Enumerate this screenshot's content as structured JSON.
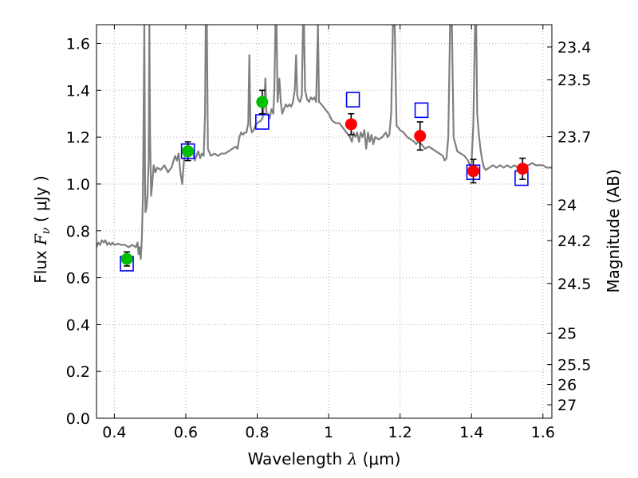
{
  "chart_data": {
    "type": "scatter",
    "xlabel": {
      "text": "Wavelength  ",
      "math": "λ",
      "unit": " (μm)"
    },
    "ylabel": {
      "text": "Flux  ",
      "math": "F",
      "sub": "ν",
      "unit": "  ( μJy )"
    },
    "y2label": "Magnitude (AB)",
    "xlim": [
      0.35,
      1.625
    ],
    "ylim": [
      0.0,
      1.68
    ],
    "grid": true,
    "x_ticks": [
      {
        "v": 0.4,
        "label": "0.4"
      },
      {
        "v": 0.6,
        "label": "0.6"
      },
      {
        "v": 0.8,
        "label": "0.8"
      },
      {
        "v": 1.0,
        "label": "1"
      },
      {
        "v": 1.2,
        "label": "1.2"
      },
      {
        "v": 1.4,
        "label": "1.4"
      },
      {
        "v": 1.6,
        "label": "1.6"
      }
    ],
    "y_ticks": [
      {
        "v": 0.0,
        "label": "0.0"
      },
      {
        "v": 0.2,
        "label": "0.2"
      },
      {
        "v": 0.4,
        "label": "0.4"
      },
      {
        "v": 0.6,
        "label": "0.6"
      },
      {
        "v": 0.8,
        "label": "0.8"
      },
      {
        "v": 1.0,
        "label": "1.0"
      },
      {
        "v": 1.2,
        "label": "1.2"
      },
      {
        "v": 1.4,
        "label": "1.4"
      },
      {
        "v": 1.6,
        "label": "1.6"
      }
    ],
    "mag_ticks": [
      {
        "mag": 23.4,
        "label": "23.4"
      },
      {
        "mag": 23.5,
        "label": "23.5"
      },
      {
        "mag": 23.7,
        "label": "23.7"
      },
      {
        "mag": 24.0,
        "label": "24"
      },
      {
        "mag": 24.2,
        "label": "24.2"
      },
      {
        "mag": 24.5,
        "label": "24.5"
      },
      {
        "mag": 25.0,
        "label": "25"
      },
      {
        "mag": 25.5,
        "label": "25.5"
      },
      {
        "mag": 26.0,
        "label": "26"
      },
      {
        "mag": 27.0,
        "label": "27"
      }
    ],
    "colors": {
      "model": "#7f7f7f",
      "green": "#00c000",
      "red": "#ff0000",
      "box": "#0000ff",
      "grid": "#b0b0b0"
    },
    "series": [
      {
        "kind": "model-spectrum",
        "color": "#7f7f7f",
        "points": [
          [
            0.35,
            0.73
          ],
          [
            0.355,
            0.75
          ],
          [
            0.36,
            0.74
          ],
          [
            0.365,
            0.76
          ],
          [
            0.37,
            0.75
          ],
          [
            0.375,
            0.76
          ],
          [
            0.38,
            0.74
          ],
          [
            0.385,
            0.75
          ],
          [
            0.39,
            0.74
          ],
          [
            0.395,
            0.75
          ],
          [
            0.4,
            0.74
          ],
          [
            0.41,
            0.745
          ],
          [
            0.42,
            0.74
          ],
          [
            0.43,
            0.74
          ],
          [
            0.44,
            0.73
          ],
          [
            0.45,
            0.74
          ],
          [
            0.46,
            0.73
          ],
          [
            0.465,
            0.75
          ],
          [
            0.468,
            0.7
          ],
          [
            0.471,
            0.73
          ],
          [
            0.474,
            0.68
          ],
          [
            0.477,
            0.77
          ],
          [
            0.48,
            0.95
          ],
          [
            0.482,
            1.3
          ],
          [
            0.484,
            1.68
          ],
          [
            0.486,
            1.0
          ],
          [
            0.487,
            0.88
          ],
          [
            0.49,
            0.9
          ],
          [
            0.493,
            0.95
          ],
          [
            0.496,
            1.1
          ],
          [
            0.498,
            1.68
          ],
          [
            0.5,
            1.2
          ],
          [
            0.503,
            0.95
          ],
          [
            0.506,
            1.0
          ],
          [
            0.51,
            1.08
          ],
          [
            0.515,
            1.05
          ],
          [
            0.52,
            1.07
          ],
          [
            0.53,
            1.06
          ],
          [
            0.54,
            1.08
          ],
          [
            0.55,
            1.05
          ],
          [
            0.56,
            1.07
          ],
          [
            0.57,
            1.12
          ],
          [
            0.575,
            1.1
          ],
          [
            0.58,
            1.13
          ],
          [
            0.585,
            1.05
          ],
          [
            0.59,
            1.0
          ],
          [
            0.595,
            1.1
          ],
          [
            0.6,
            1.15
          ],
          [
            0.605,
            1.14
          ],
          [
            0.61,
            1.13
          ],
          [
            0.62,
            1.14
          ],
          [
            0.625,
            1.1
          ],
          [
            0.63,
            1.12
          ],
          [
            0.635,
            1.14
          ],
          [
            0.64,
            1.11
          ],
          [
            0.645,
            1.13
          ],
          [
            0.65,
            1.12
          ],
          [
            0.654,
            1.3
          ],
          [
            0.656,
            1.68
          ],
          [
            0.659,
            1.68
          ],
          [
            0.662,
            1.15
          ],
          [
            0.67,
            1.12
          ],
          [
            0.68,
            1.13
          ],
          [
            0.69,
            1.12
          ],
          [
            0.7,
            1.13
          ],
          [
            0.71,
            1.13
          ],
          [
            0.72,
            1.14
          ],
          [
            0.73,
            1.15
          ],
          [
            0.74,
            1.16
          ],
          [
            0.745,
            1.15
          ],
          [
            0.75,
            1.2
          ],
          [
            0.755,
            1.22
          ],
          [
            0.76,
            1.21
          ],
          [
            0.765,
            1.22
          ],
          [
            0.77,
            1.22
          ],
          [
            0.775,
            1.26
          ],
          [
            0.778,
            1.55
          ],
          [
            0.781,
            1.25
          ],
          [
            0.785,
            1.22
          ],
          [
            0.79,
            1.23
          ],
          [
            0.795,
            1.25
          ],
          [
            0.8,
            1.26
          ],
          [
            0.81,
            1.27
          ],
          [
            0.815,
            1.28
          ],
          [
            0.82,
            1.35
          ],
          [
            0.823,
            1.45
          ],
          [
            0.826,
            1.3
          ],
          [
            0.83,
            1.3
          ],
          [
            0.835,
            1.28
          ],
          [
            0.84,
            1.32
          ],
          [
            0.845,
            1.3
          ],
          [
            0.848,
            1.4
          ],
          [
            0.851,
            1.68
          ],
          [
            0.854,
            1.68
          ],
          [
            0.857,
            1.35
          ],
          [
            0.862,
            1.45
          ],
          [
            0.866,
            1.35
          ],
          [
            0.87,
            1.3
          ],
          [
            0.875,
            1.32
          ],
          [
            0.88,
            1.34
          ],
          [
            0.885,
            1.33
          ],
          [
            0.89,
            1.34
          ],
          [
            0.895,
            1.33
          ],
          [
            0.9,
            1.35
          ],
          [
            0.905,
            1.4
          ],
          [
            0.909,
            1.55
          ],
          [
            0.912,
            1.38
          ],
          [
            0.915,
            1.36
          ],
          [
            0.92,
            1.35
          ],
          [
            0.925,
            1.38
          ],
          [
            0.928,
            1.68
          ],
          [
            0.931,
            1.68
          ],
          [
            0.934,
            1.4
          ],
          [
            0.94,
            1.36
          ],
          [
            0.945,
            1.35
          ],
          [
            0.95,
            1.37
          ],
          [
            0.955,
            1.36
          ],
          [
            0.96,
            1.37
          ],
          [
            0.965,
            1.35
          ],
          [
            0.97,
            1.68
          ],
          [
            0.973,
            1.35
          ],
          [
            0.98,
            1.34
          ],
          [
            0.99,
            1.32
          ],
          [
            1.0,
            1.3
          ],
          [
            1.01,
            1.27
          ],
          [
            1.02,
            1.26
          ],
          [
            1.03,
            1.26
          ],
          [
            1.04,
            1.24
          ],
          [
            1.05,
            1.22
          ],
          [
            1.06,
            1.2
          ],
          [
            1.065,
            1.18
          ],
          [
            1.07,
            1.22
          ],
          [
            1.075,
            1.2
          ],
          [
            1.08,
            1.22
          ],
          [
            1.085,
            1.18
          ],
          [
            1.09,
            1.22
          ],
          [
            1.095,
            1.2
          ],
          [
            1.1,
            1.23
          ],
          [
            1.105,
            1.15
          ],
          [
            1.11,
            1.22
          ],
          [
            1.115,
            1.18
          ],
          [
            1.12,
            1.21
          ],
          [
            1.125,
            1.17
          ],
          [
            1.13,
            1.2
          ],
          [
            1.14,
            1.19
          ],
          [
            1.15,
            1.2
          ],
          [
            1.16,
            1.22
          ],
          [
            1.165,
            1.2
          ],
          [
            1.17,
            1.21
          ],
          [
            1.175,
            1.3
          ],
          [
            1.18,
            1.68
          ],
          [
            1.185,
            1.68
          ],
          [
            1.19,
            1.25
          ],
          [
            1.2,
            1.23
          ],
          [
            1.21,
            1.22
          ],
          [
            1.22,
            1.2
          ],
          [
            1.23,
            1.19
          ],
          [
            1.24,
            1.18
          ],
          [
            1.245,
            1.17
          ],
          [
            1.25,
            1.18
          ],
          [
            1.26,
            1.17
          ],
          [
            1.27,
            1.15
          ],
          [
            1.28,
            1.16
          ],
          [
            1.29,
            1.15
          ],
          [
            1.3,
            1.14
          ],
          [
            1.31,
            1.13
          ],
          [
            1.32,
            1.12
          ],
          [
            1.325,
            1.1
          ],
          [
            1.33,
            1.11
          ],
          [
            1.335,
            1.2
          ],
          [
            1.34,
            1.68
          ],
          [
            1.345,
            1.68
          ],
          [
            1.35,
            1.2
          ],
          [
            1.36,
            1.14
          ],
          [
            1.37,
            1.13
          ],
          [
            1.38,
            1.12
          ],
          [
            1.39,
            1.1
          ],
          [
            1.395,
            1.08
          ],
          [
            1.4,
            1.09
          ],
          [
            1.405,
            1.25
          ],
          [
            1.41,
            1.68
          ],
          [
            1.413,
            1.68
          ],
          [
            1.416,
            1.3
          ],
          [
            1.42,
            1.22
          ],
          [
            1.425,
            1.15
          ],
          [
            1.43,
            1.1
          ],
          [
            1.435,
            1.07
          ],
          [
            1.44,
            1.06
          ],
          [
            1.45,
            1.07
          ],
          [
            1.46,
            1.08
          ],
          [
            1.47,
            1.07
          ],
          [
            1.48,
            1.08
          ],
          [
            1.49,
            1.07
          ],
          [
            1.5,
            1.08
          ],
          [
            1.51,
            1.07
          ],
          [
            1.52,
            1.08
          ],
          [
            1.53,
            1.07
          ],
          [
            1.54,
            1.07
          ],
          [
            1.55,
            1.08
          ],
          [
            1.56,
            1.08
          ],
          [
            1.57,
            1.09
          ],
          [
            1.58,
            1.08
          ],
          [
            1.59,
            1.08
          ],
          [
            1.6,
            1.08
          ],
          [
            1.61,
            1.07
          ],
          [
            1.625,
            1.07
          ]
        ]
      },
      {
        "kind": "photometry",
        "color": "#00c000",
        "points": [
          {
            "x": 0.435,
            "y": 0.68,
            "err": 0.03
          },
          {
            "x": 0.606,
            "y": 1.14,
            "err": 0.04
          },
          {
            "x": 0.814,
            "y": 1.35,
            "err": 0.05
          }
        ]
      },
      {
        "kind": "photometry",
        "color": "#ff0000",
        "points": [
          {
            "x": 1.063,
            "y": 1.255,
            "err": 0.045
          },
          {
            "x": 1.256,
            "y": 1.205,
            "err": 0.06
          },
          {
            "x": 1.405,
            "y": 1.055,
            "err": 0.05
          },
          {
            "x": 1.543,
            "y": 1.065,
            "err": 0.045
          }
        ]
      },
      {
        "kind": "model-synthetic",
        "color": "#0000ff",
        "points": [
          {
            "x": 0.435,
            "y": 0.66
          },
          {
            "x": 0.606,
            "y": 1.14
          },
          {
            "x": 0.814,
            "y": 1.265
          },
          {
            "x": 1.068,
            "y": 1.36
          },
          {
            "x": 1.26,
            "y": 1.315
          },
          {
            "x": 1.405,
            "y": 1.05
          },
          {
            "x": 1.54,
            "y": 1.025
          }
        ]
      }
    ]
  }
}
